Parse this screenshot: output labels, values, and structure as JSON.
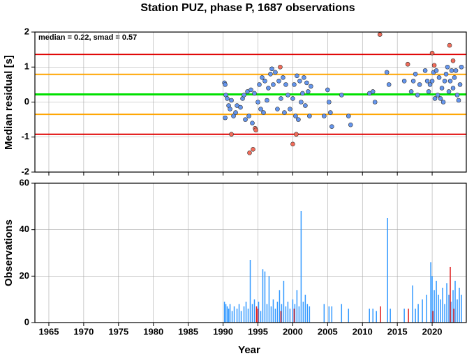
{
  "chart_data": [
    {
      "type": "scatter",
      "title": "Station PUZ, phase P, 1687 observations",
      "ylabel": "Median residual [s]",
      "annotation": "median = 0.22, smad = 0.57",
      "xlim": [
        1963,
        2024.9
      ],
      "ylim": [
        -2,
        2
      ],
      "yticks": [
        -2,
        -1,
        0,
        1,
        2
      ],
      "grid": true,
      "hlines": [
        {
          "value": 1.36,
          "color": "#e00000"
        },
        {
          "value": 0.79,
          "color": "#ffa500"
        },
        {
          "value": 0.22,
          "color": "#00e000"
        },
        {
          "value": -0.35,
          "color": "#ffa500"
        },
        {
          "value": -0.92,
          "color": "#e00000"
        }
      ],
      "series": [
        {
          "color": "#6495ed",
          "x": [
            1990.2,
            1990.3,
            1990.3,
            1990.4,
            1990.6,
            1990.8,
            1991.0,
            1991.2,
            1991.5,
            1991.8,
            1992.0,
            1992.5,
            1992.8,
            1993.0,
            1993.2,
            1993.5,
            1993.7,
            1994.0,
            1994.2,
            1994.5,
            1995.0,
            1995.2,
            1995.4,
            1995.6,
            1995.8,
            1996.0,
            1996.3,
            1996.5,
            1996.8,
            1997.0,
            1997.2,
            1997.5,
            1997.8,
            1998.0,
            1998.3,
            1998.6,
            1998.8,
            1999.0,
            1999.3,
            1999.6,
            2000.0,
            2000.2,
            2000.4,
            2000.6,
            2000.8,
            2001.0,
            2001.2,
            2001.4,
            2001.6,
            2001.8,
            2002.0,
            2002.2,
            2002.4,
            2002.6,
            2004.5,
            2005.0,
            2005.2,
            2005.4,
            2005.6,
            2007.0,
            2008.0,
            2008.3,
            2011.0,
            2011.5,
            2011.8,
            2013.5,
            2013.8,
            2016.0,
            2017.0,
            2017.3,
            2017.6,
            2017.9,
            2018.2,
            2019.0,
            2019.3,
            2019.5,
            2019.7,
            2020.0,
            2020.2,
            2020.4,
            2020.6,
            2020.8,
            2021.0,
            2021.2,
            2021.4,
            2021.6,
            2021.8,
            2022.0,
            2022.2,
            2022.4,
            2022.6,
            2022.8,
            2023.0,
            2023.2,
            2023.4,
            2023.6,
            2023.8,
            2024.0,
            2024.2
          ],
          "values": [
            0.55,
            0.5,
            -0.45,
            0.2,
            0.1,
            -0.1,
            -0.2,
            0.05,
            -0.4,
            -0.3,
            -0.1,
            -0.15,
            0.1,
            0.2,
            -0.5,
            0.3,
            -0.4,
            0.35,
            -0.6,
            0.25,
            0.0,
            0.5,
            -0.2,
            0.7,
            -0.3,
            0.6,
            0.05,
            0.4,
            0.8,
            0.95,
            0.5,
            0.85,
            -0.2,
            0.6,
            0.1,
            0.7,
            -0.3,
            0.5,
            0.2,
            -0.2,
            0.1,
            0.5,
            -0.4,
            0.75,
            -0.5,
            0.6,
            0.0,
            0.25,
            0.7,
            -0.1,
            0.55,
            0.3,
            -0.4,
            0.45,
            -0.4,
            0.35,
            0.0,
            -0.3,
            -0.7,
            0.2,
            -0.4,
            -0.65,
            0.25,
            0.3,
            0.0,
            0.85,
            0.5,
            0.6,
            0.3,
            0.6,
            0.8,
            0.2,
            0.5,
            0.9,
            0.6,
            0.3,
            0.5,
            0.6,
            0.85,
            0.1,
            0.9,
            0.2,
            0.7,
            0.1,
            0.4,
            0.0,
            0.6,
            0.8,
            1.0,
            0.3,
            0.6,
            0.9,
            0.4,
            0.7,
            0.9,
            0.2,
            0.05,
            0.5,
            1.0
          ]
        },
        {
          "color": "#f26c5a",
          "x": [
            1991.2,
            1993.8,
            1994.3,
            1994.6,
            1994.7,
            1998.2,
            2000.0,
            2000.5,
            2012.5,
            2016.5,
            2020.0,
            2020.3,
            2022.5,
            2023.0
          ],
          "values": [
            -0.92,
            -1.45,
            -1.35,
            -0.75,
            -0.8,
            1.0,
            -1.2,
            -0.92,
            1.93,
            1.08,
            1.4,
            1.05,
            1.62,
            1.18
          ]
        }
      ]
    },
    {
      "type": "bar",
      "xlabel": "Year",
      "ylabel": "Observations",
      "xlim": [
        1963,
        2024.9
      ],
      "ylim": [
        0,
        60
      ],
      "yticks": [
        0,
        20,
        40,
        60
      ],
      "xticks": [
        1965,
        1970,
        1975,
        1980,
        1985,
        1990,
        1995,
        2000,
        2005,
        2010,
        2015,
        2020
      ],
      "grid": true,
      "series": [
        {
          "color": "#3399ff",
          "x": [
            1990.2,
            1990.4,
            1990.6,
            1990.8,
            1991.0,
            1991.3,
            1991.6,
            1992.0,
            1992.3,
            1992.6,
            1993.0,
            1993.3,
            1993.6,
            1993.9,
            1994.2,
            1994.5,
            1994.8,
            1995.1,
            1995.4,
            1995.7,
            1996.0,
            1996.3,
            1996.6,
            1996.9,
            1997.2,
            1997.5,
            1997.8,
            1998.1,
            1998.4,
            1998.7,
            1999.0,
            1999.3,
            1999.6,
            2000.0,
            2000.3,
            2000.6,
            2000.9,
            2001.2,
            2001.5,
            2001.8,
            2002.1,
            2002.4,
            2004.5,
            2005.2,
            2005.6,
            2007.0,
            2008.0,
            2011.0,
            2011.5,
            2012.0,
            2013.6,
            2014.0,
            2016.0,
            2017.2,
            2017.6,
            2018.0,
            2018.6,
            2019.2,
            2019.8,
            2020.0,
            2020.3,
            2020.6,
            2020.9,
            2021.2,
            2021.5,
            2021.8,
            2022.1,
            2022.4,
            2022.7,
            2023.0,
            2023.3,
            2023.6,
            2023.9,
            2024.2
          ],
          "values": [
            9,
            8,
            7,
            6,
            8,
            5,
            7,
            6,
            8,
            5,
            7,
            9,
            6,
            27,
            8,
            10,
            6,
            9,
            5,
            23,
            22,
            8,
            20,
            7,
            10,
            6,
            9,
            14,
            8,
            18,
            7,
            9,
            6,
            10,
            8,
            14,
            7,
            48,
            9,
            12,
            8,
            7,
            8,
            7,
            7,
            8,
            6,
            6,
            6,
            5,
            45,
            6,
            6,
            16,
            6,
            8,
            10,
            12,
            26,
            20,
            14,
            18,
            12,
            10,
            15,
            8,
            17,
            12,
            9,
            14,
            18,
            10,
            15,
            12
          ]
        },
        {
          "color": "#e02020",
          "x": [
            1994.8,
            1995.0,
            1998.3,
            2000.2,
            2012.6,
            2016.6,
            2020.1,
            2022.6,
            2023.1
          ],
          "values": [
            7,
            6,
            5,
            6,
            7,
            6,
            5,
            24,
            6
          ]
        }
      ]
    }
  ]
}
